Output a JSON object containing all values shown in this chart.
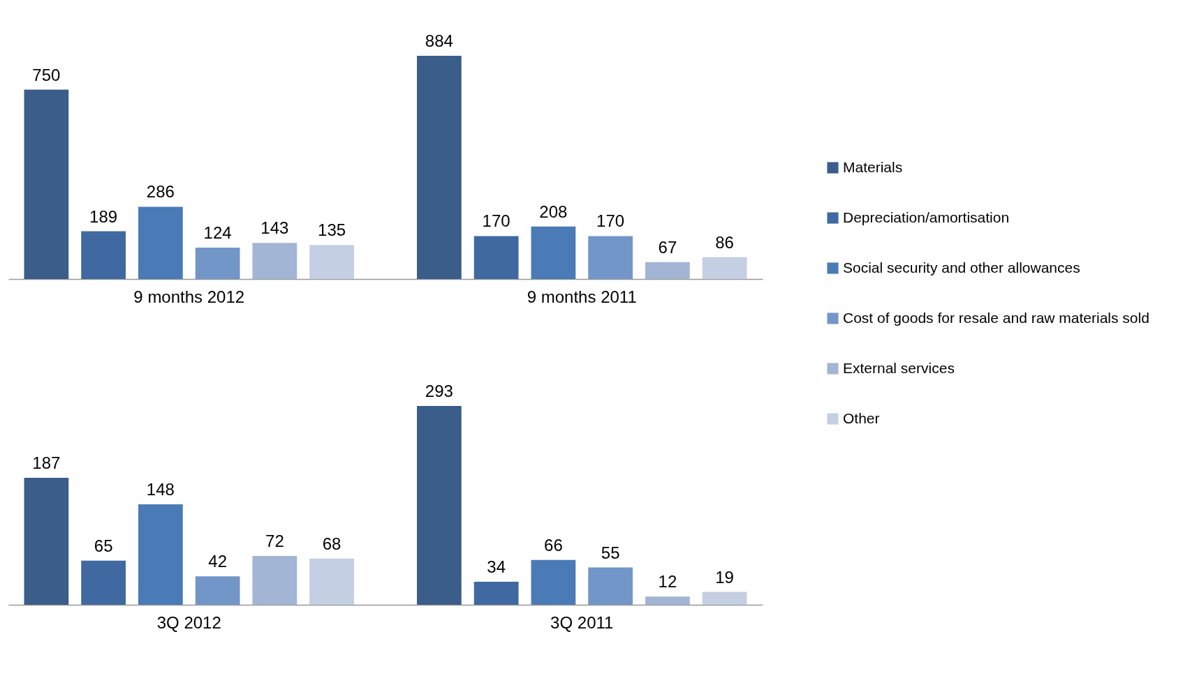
{
  "chart_data": [
    {
      "type": "bar",
      "categories": [
        "9 months 2012",
        "9 months 2011"
      ],
      "data_labels": true,
      "legend": "right",
      "series": [
        {
          "name": "Materials",
          "color": "#3a5d8a",
          "values": [
            750,
            884
          ]
        },
        {
          "name": "Depreciation/amortisation",
          "color": "#3f69a0",
          "values": [
            189,
            170
          ]
        },
        {
          "name": "Social security and other allowances",
          "color": "#4a7bb6",
          "values": [
            286,
            208
          ]
        },
        {
          "name": "Cost of goods for resale and raw materials sold",
          "color": "#7396c8",
          "values": [
            124,
            170
          ]
        },
        {
          "name": "External services",
          "color": "#a2b5d5",
          "values": [
            143,
            67
          ]
        },
        {
          "name": "Other",
          "color": "#c4cfe3",
          "values": [
            135,
            86
          ]
        }
      ]
    },
    {
      "type": "bar",
      "categories": [
        "3Q 2012",
        "3Q 2011"
      ],
      "data_labels": true,
      "legend": false,
      "series": [
        {
          "color": "#3a5d8a",
          "values": [
            187,
            293
          ]
        },
        {
          "color": "#3f69a0",
          "values": [
            65,
            34
          ]
        },
        {
          "color": "#4a7bb6",
          "values": [
            148,
            66
          ]
        },
        {
          "color": "#7396c8",
          "values": [
            42,
            55
          ]
        },
        {
          "color": "#a2b5d5",
          "values": [
            72,
            12
          ]
        },
        {
          "color": "#c4cfe3",
          "values": [
            68,
            19
          ]
        }
      ]
    }
  ]
}
